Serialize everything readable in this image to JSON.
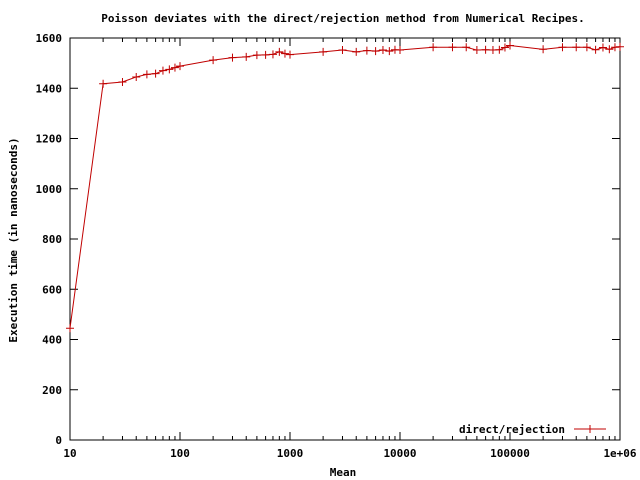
{
  "chart_data": {
    "type": "line",
    "title": "Poisson deviates with the direct/rejection method from Numerical Recipes.",
    "xlabel": "Mean",
    "ylabel": "Execution time (in nanoseconds)",
    "xscale": "log",
    "xlim": [
      10,
      1000000
    ],
    "ylim": [
      0,
      1600
    ],
    "xticks": [
      {
        "value": 10,
        "label": "10"
      },
      {
        "value": 100,
        "label": "100"
      },
      {
        "value": 1000,
        "label": "1000"
      },
      {
        "value": 10000,
        "label": "10000"
      },
      {
        "value": 100000,
        "label": "100000"
      },
      {
        "value": 1000000,
        "label": "1e+06"
      }
    ],
    "yticks": [
      {
        "value": 0,
        "label": "0"
      },
      {
        "value": 200,
        "label": "200"
      },
      {
        "value": 400,
        "label": "400"
      },
      {
        "value": 600,
        "label": "600"
      },
      {
        "value": 800,
        "label": "800"
      },
      {
        "value": 1000,
        "label": "1000"
      },
      {
        "value": 1200,
        "label": "1200"
      },
      {
        "value": 1400,
        "label": "1400"
      },
      {
        "value": 1600,
        "label": "1600"
      }
    ],
    "grid": false,
    "legend_position": "bottom-right",
    "series": [
      {
        "name": "direct/rejection",
        "color": "#c00000",
        "marker": "plus",
        "x": [
          10,
          20,
          30,
          40,
          50,
          60,
          70,
          80,
          90,
          100,
          200,
          300,
          400,
          500,
          600,
          700,
          800,
          900,
          1000,
          2000,
          3000,
          4000,
          5000,
          6000,
          7000,
          8000,
          9000,
          10000,
          20000,
          30000,
          40000,
          50000,
          60000,
          70000,
          80000,
          90000,
          100000,
          200000,
          300000,
          400000,
          500000,
          600000,
          700000,
          800000,
          900000,
          1000000
        ],
        "y": [
          445,
          1418,
          1425,
          1445,
          1455,
          1458,
          1470,
          1475,
          1482,
          1488,
          1512,
          1522,
          1525,
          1532,
          1533,
          1535,
          1545,
          1538,
          1534,
          1545,
          1552,
          1545,
          1550,
          1548,
          1552,
          1548,
          1553,
          1552,
          1563,
          1563,
          1563,
          1552,
          1553,
          1552,
          1553,
          1562,
          1570,
          1555,
          1563,
          1563,
          1563,
          1553,
          1562,
          1555,
          1563,
          1565
        ]
      }
    ]
  }
}
